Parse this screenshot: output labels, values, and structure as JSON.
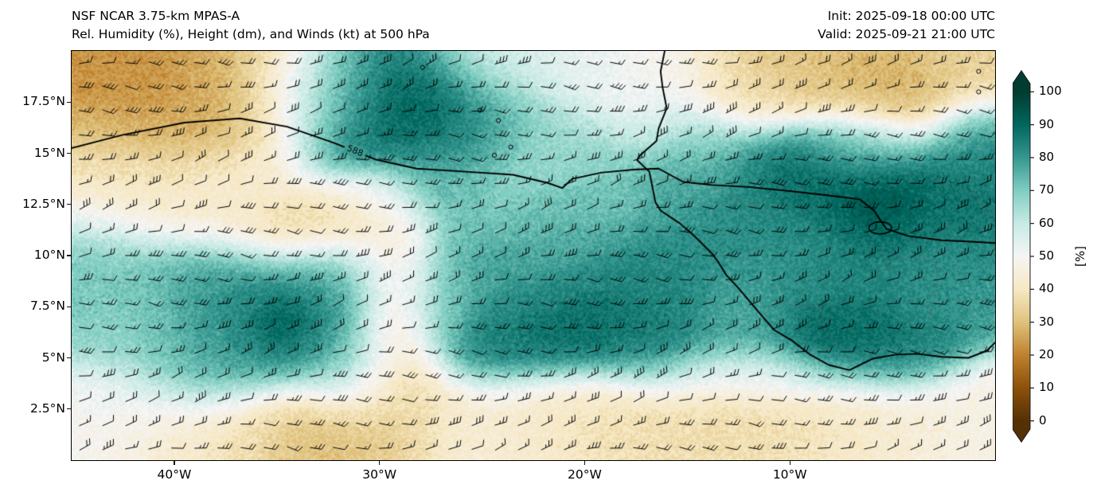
{
  "header": {
    "model_title": "NSF NCAR 3.75-km MPAS-A",
    "field_title": "Rel. Humidity (%), Height (dm), and Winds (kt) at 500 hPa",
    "init_label": "Init: 2025-09-18 00:00 UTC",
    "valid_label": "Valid: 2025-09-21 21:00 UTC"
  },
  "chart_data": {
    "type": "heatmap",
    "title": "Rel. Humidity (%), Height (dm), and Winds (kt) at 500 hPa",
    "model": "NSF NCAR 3.75-km MPAS-A",
    "init_time": "2025-09-18 00:00 UTC",
    "valid_time": "2025-09-21 21:00 UTC",
    "x_axis": {
      "range_lon": [
        -45,
        0
      ],
      "ticks": [
        {
          "label": "40°W",
          "lon": -40
        },
        {
          "label": "30°W",
          "lon": -30
        },
        {
          "label": "20°W",
          "lon": -20
        },
        {
          "label": "10°W",
          "lon": -10
        }
      ]
    },
    "y_axis": {
      "range_lat": [
        0,
        20
      ],
      "ticks": [
        {
          "label": "17.5°N",
          "lat": 17.5
        },
        {
          "label": "15°N",
          "lat": 15
        },
        {
          "label": "12.5°N",
          "lat": 12.5
        },
        {
          "label": "10°N",
          "lat": 10
        },
        {
          "label": "7.5°N",
          "lat": 7.5
        },
        {
          "label": "5°N",
          "lat": 5
        },
        {
          "label": "2.5°N",
          "lat": 2.5
        }
      ]
    },
    "colorbar": {
      "label": "[%]",
      "ticks": [
        0,
        10,
        20,
        30,
        40,
        50,
        60,
        70,
        80,
        90,
        100
      ],
      "extend": "both",
      "levels_step": 5,
      "colormap": {
        "name": "BrBG",
        "stops": [
          "#543005",
          "#8c510a",
          "#bf812d",
          "#dfc27d",
          "#f6e8c3",
          "#f5f5f5",
          "#c7eae5",
          "#80cdc1",
          "#35978f",
          "#01665e",
          "#003c30"
        ]
      }
    },
    "height_contours": {
      "label": "588",
      "label_pos": [
        -31.2,
        15.1
      ],
      "label_rotation_rad": 0.38,
      "main_path": [
        [
          -45.2,
          15.2
        ],
        [
          -42.5,
          15.9
        ],
        [
          -39.5,
          16.5
        ],
        [
          -36.8,
          16.7
        ],
        [
          -34.5,
          16.3
        ],
        [
          -32.2,
          15.5
        ],
        [
          -30.2,
          14.7
        ],
        [
          -28.2,
          14.25
        ],
        [
          -25.8,
          14.1
        ],
        [
          -23.5,
          13.95
        ],
        [
          -21.8,
          13.55
        ],
        [
          -21.1,
          13.3
        ],
        [
          -20.6,
          13.75
        ],
        [
          -19.2,
          14.05
        ],
        [
          -17.6,
          14.2
        ],
        [
          -16.4,
          14.25
        ],
        [
          -15.2,
          13.6
        ],
        [
          -13.8,
          13.45
        ],
        [
          -12.0,
          13.35
        ],
        [
          -10.0,
          13.15
        ],
        [
          -8.2,
          12.95
        ],
        [
          -6.6,
          12.75
        ],
        [
          -5.9,
          12.2
        ],
        [
          -5.3,
          11.3
        ],
        [
          -4.2,
          10.95
        ],
        [
          -2.6,
          10.75
        ],
        [
          -1.2,
          10.68
        ],
        [
          0.2,
          10.6
        ]
      ],
      "closed_loop": {
        "lon": -5.6,
        "lat": 11.35,
        "rx": 0.55,
        "ry": 0.3
      }
    },
    "coastline_path": [
      [
        -16.1,
        20.0
      ],
      [
        -16.3,
        19.0
      ],
      [
        -16.2,
        18.2
      ],
      [
        -16.0,
        17.2
      ],
      [
        -16.4,
        16.2
      ],
      [
        -16.5,
        15.6
      ],
      [
        -17.3,
        14.9
      ],
      [
        -17.45,
        14.67
      ],
      [
        -16.85,
        14.1
      ],
      [
        -16.75,
        13.6
      ],
      [
        -16.55,
        12.6
      ],
      [
        -16.3,
        12.2
      ],
      [
        -15.4,
        11.6
      ],
      [
        -14.7,
        11.0
      ],
      [
        -14.4,
        10.7
      ],
      [
        -13.8,
        10.1
      ],
      [
        -13.5,
        9.7
      ],
      [
        -13.1,
        9.05
      ],
      [
        -12.5,
        8.4
      ],
      [
        -11.4,
        7.1
      ],
      [
        -10.75,
        6.35
      ],
      [
        -9.9,
        5.85
      ],
      [
        -9.0,
        5.15
      ],
      [
        -8.1,
        4.65
      ],
      [
        -7.1,
        4.4
      ],
      [
        -6.0,
        4.95
      ],
      [
        -4.9,
        5.15
      ],
      [
        -3.8,
        5.2
      ],
      [
        -2.6,
        5.05
      ],
      [
        -1.3,
        5.0
      ],
      [
        -0.4,
        5.35
      ],
      [
        0.2,
        5.95
      ]
    ],
    "borders": [
      [
        [
          -16.7,
          13.7
        ],
        [
          -15.0,
          13.75
        ],
        [
          -13.2,
          13.1
        ],
        [
          -12.0,
          12.5
        ],
        [
          -11.4,
          12.4
        ],
        [
          -11.05,
          12.2
        ],
        [
          -10.7,
          11.9
        ]
      ],
      [
        [
          -11.5,
          6.9
        ],
        [
          -10.6,
          7.8
        ],
        [
          -9.4,
          7.5
        ],
        [
          -8.5,
          7.6
        ],
        [
          -8.3,
          6.3
        ],
        [
          -7.6,
          5.5
        ]
      ],
      [
        [
          -5.5,
          10.4
        ],
        [
          -5.3,
          9.2
        ],
        [
          -4.8,
          9.8
        ],
        [
          -3.2,
          9.9
        ],
        [
          -2.75,
          9.4
        ],
        [
          -2.9,
          8.1
        ],
        [
          -3.25,
          6.85
        ]
      ],
      [
        [
          -2.9,
          13.8
        ],
        [
          -1.0,
          13.0
        ],
        [
          0.2,
          11.1
        ]
      ]
    ],
    "islands": [
      [
        -25.1,
        17.1
      ],
      [
        -24.2,
        16.6
      ],
      [
        -23.6,
        15.3
      ],
      [
        -24.4,
        14.9
      ],
      [
        -27.9,
        19.2
      ],
      [
        -0.8,
        19.0
      ],
      [
        -0.8,
        18.0
      ]
    ],
    "humidity_field_blobs": [
      [
        -43,
        18.2,
        3.0,
        2.0,
        22
      ],
      [
        -39,
        16.8,
        2.8,
        1.8,
        25
      ],
      [
        -35.5,
        18.0,
        2.5,
        1.6,
        28
      ],
      [
        -44,
        13.8,
        2.5,
        1.8,
        38
      ],
      [
        -40.5,
        13.0,
        2.5,
        1.5,
        42
      ],
      [
        -36.5,
        13.5,
        2.0,
        1.5,
        45
      ],
      [
        -44.3,
        9.5,
        2.2,
        2.0,
        72
      ],
      [
        -42.5,
        7.0,
        2.0,
        1.6,
        68
      ],
      [
        -33.5,
        11.5,
        2.8,
        1.3,
        30
      ],
      [
        -30.8,
        12.3,
        1.5,
        1.0,
        38
      ],
      [
        -30,
        16.3,
        2.6,
        2.2,
        88
      ],
      [
        -28,
        17.6,
        1.8,
        1.4,
        97
      ],
      [
        -32.5,
        17.8,
        2.2,
        1.4,
        80
      ],
      [
        -26.5,
        15.2,
        1.8,
        1.8,
        85
      ],
      [
        -24.5,
        17.0,
        1.8,
        1.5,
        75
      ],
      [
        -27.5,
        13.5,
        1.5,
        1.2,
        70
      ],
      [
        -29.7,
        12.8,
        1.2,
        1.0,
        50
      ],
      [
        -37.5,
        8.2,
        2.6,
        1.8,
        80
      ],
      [
        -34.5,
        6.3,
        2.2,
        1.8,
        88
      ],
      [
        -34.8,
        6.8,
        0.9,
        0.8,
        96
      ],
      [
        -38.5,
        4.5,
        2.2,
        1.4,
        76
      ],
      [
        -32,
        8.8,
        1.6,
        1.4,
        78
      ],
      [
        -31.5,
        4.5,
        1.5,
        1.5,
        72
      ],
      [
        -29.8,
        10.0,
        1.3,
        1.8,
        45
      ],
      [
        -29.0,
        6.5,
        1.2,
        2.0,
        40
      ],
      [
        -29.5,
        3.0,
        1.6,
        1.8,
        33
      ],
      [
        -33,
        1.8,
        2.5,
        1.4,
        26
      ],
      [
        -38,
        1.5,
        2.8,
        1.3,
        40
      ],
      [
        -43,
        2.5,
        2.5,
        1.5,
        50
      ],
      [
        -24,
        2.0,
        3.0,
        1.5,
        44
      ],
      [
        -19,
        1.8,
        3.0,
        1.4,
        38
      ],
      [
        -13.5,
        2.0,
        3.0,
        1.4,
        36
      ],
      [
        -8,
        1.8,
        2.8,
        1.4,
        40
      ],
      [
        -3,
        2.2,
        2.5,
        1.5,
        46
      ],
      [
        -12,
        4.2,
        3.0,
        0.9,
        55
      ],
      [
        -23.5,
        9.5,
        2.4,
        2.2,
        78
      ],
      [
        -20.5,
        6.8,
        1.8,
        1.5,
        90
      ],
      [
        -21,
        11.5,
        1.8,
        1.4,
        74
      ],
      [
        -17.5,
        9.0,
        2.0,
        1.8,
        84
      ],
      [
        -16.5,
        5.8,
        1.8,
        1.4,
        86
      ],
      [
        -24.5,
        13.2,
        1.8,
        1.4,
        64
      ],
      [
        -19,
        12.8,
        1.6,
        1.3,
        70
      ],
      [
        -24,
        19.3,
        2.5,
        1.1,
        55
      ],
      [
        -20,
        18.8,
        2.2,
        1.2,
        52
      ],
      [
        -16.5,
        18.5,
        1.8,
        1.2,
        48
      ],
      [
        -21.5,
        15.5,
        1.8,
        1.5,
        65
      ],
      [
        -9,
        18.8,
        2.6,
        1.4,
        30
      ],
      [
        -4.5,
        17.8,
        2.4,
        1.5,
        27
      ],
      [
        -1,
        19.2,
        1.6,
        1.2,
        35
      ],
      [
        -12.5,
        17.8,
        1.8,
        1.2,
        38
      ],
      [
        -13,
        12.5,
        2.2,
        2.0,
        82
      ],
      [
        -9.5,
        13.8,
        2.0,
        1.6,
        90
      ],
      [
        -5.5,
        12.8,
        1.8,
        1.5,
        95
      ],
      [
        -2,
        12.5,
        1.8,
        1.8,
        87
      ],
      [
        -1,
        15.3,
        1.4,
        1.4,
        83
      ],
      [
        -6.5,
        15.3,
        1.8,
        1.1,
        72
      ],
      [
        -14.5,
        15.2,
        1.6,
        1.4,
        68
      ],
      [
        -10.5,
        9.5,
        2.2,
        1.8,
        80
      ],
      [
        -6.5,
        8.5,
        2.2,
        1.8,
        85
      ],
      [
        -2.5,
        8.8,
        1.8,
        1.6,
        80
      ],
      [
        -8,
        5.8,
        1.8,
        1.3,
        93
      ],
      [
        -4.5,
        5.2,
        1.6,
        1.1,
        88
      ],
      [
        -12.5,
        6.5,
        1.5,
        1.3,
        76
      ],
      [
        -15.5,
        13.5,
        1.2,
        1.5,
        78
      ],
      [
        -16.3,
        16.6,
        1.3,
        1.2,
        55
      ],
      [
        -24,
        5.8,
        1.8,
        1.3,
        88
      ],
      [
        -27,
        7.5,
        1.2,
        1.5,
        70
      ]
    ],
    "winds": {
      "units": "kt",
      "general_direction": "easterly",
      "speed_range_kt": [
        5,
        25
      ],
      "barb_grid": {
        "cols": 40,
        "rows": 17
      }
    }
  }
}
